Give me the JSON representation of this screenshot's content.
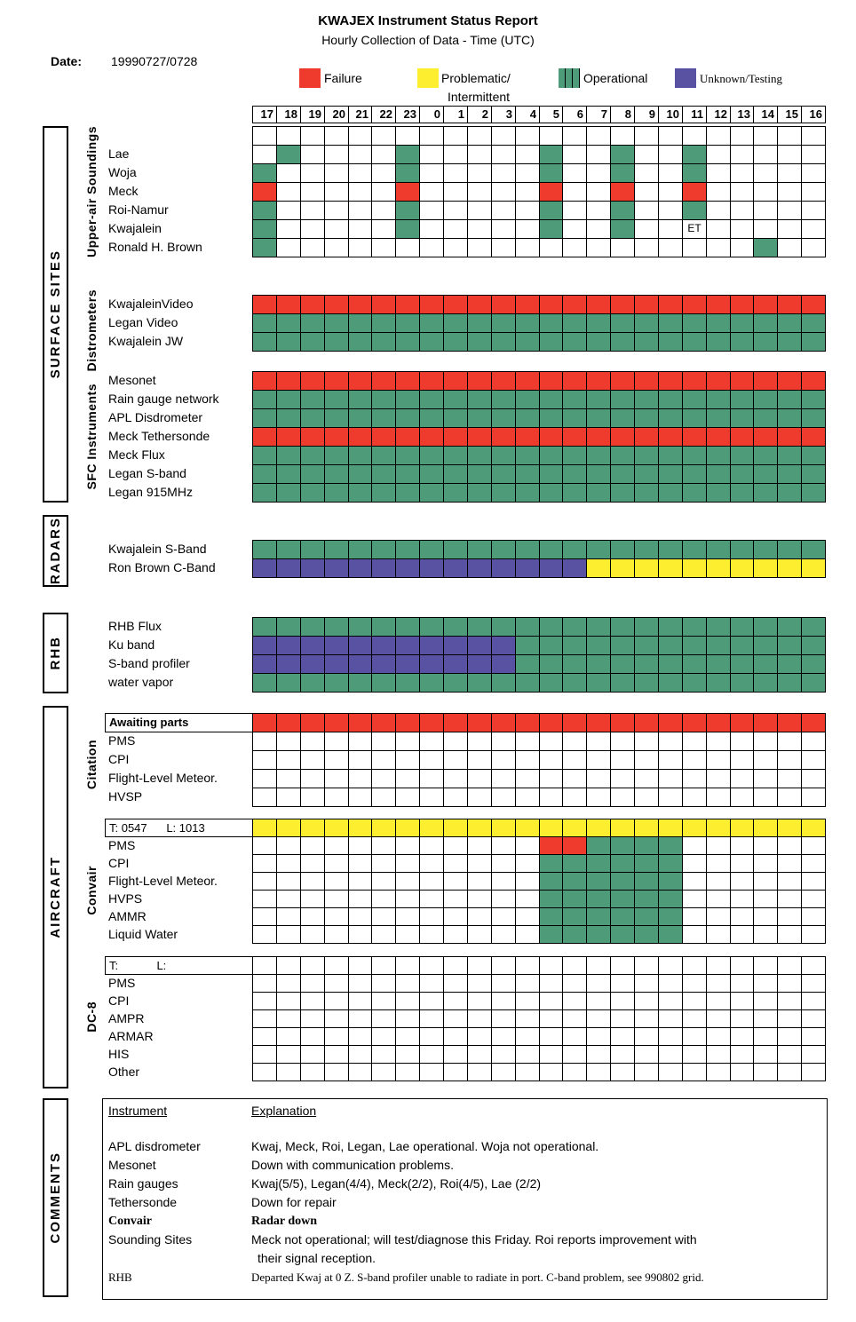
{
  "title": "KWAJEX Instrument Status Report",
  "subtitle": "Hourly Collection of Data - Time (UTC)",
  "date": {
    "label": "Date:",
    "value": "19990727/0728"
  },
  "legend": [
    {
      "label": "Failure",
      "color_key": "failure"
    },
    {
      "label": "Problematic/",
      "label2": "Intermittent",
      "color_key": "problematic"
    },
    {
      "label": "Operational",
      "color_key": "operational"
    },
    {
      "label": "Unknown/Testing",
      "color_key": "unknown"
    }
  ],
  "colors": {
    "failure": "#ee3b2e",
    "problematic": "#fdee30",
    "operational": "#4e9b79",
    "unknown": "#5951a2",
    "grid_line": "#000000"
  },
  "sidebar_labels": [
    "SURFACE SITES",
    "RADARS",
    "RHB",
    "AIRCRAFT",
    "COMMENTS"
  ],
  "group_labels": [
    "Upper-air Soundings",
    "Distrometers",
    "SFC Instruments",
    "Citation",
    "Convair",
    "DC-8"
  ],
  "chart_data": {
    "type": "heatmap",
    "title": "KWAJEX Instrument Status Report",
    "x_axis": "Hour (UTC)",
    "hours": [
      "17",
      "18",
      "19",
      "20",
      "21",
      "22",
      "23",
      "0",
      "1",
      "2",
      "3",
      "4",
      "5",
      "6",
      "7",
      "8",
      "9",
      "10",
      "11",
      "12",
      "13",
      "14",
      "15",
      "16"
    ],
    "status_codes": {
      "O": "Operational",
      "F": "Failure",
      "P": "Problematic/Intermittent",
      "U": "Unknown/Testing",
      "-": "blank"
    },
    "sections": [
      {
        "id": "upper_air",
        "sidebar": "SURFACE SITES",
        "group": "Upper-air Soundings",
        "rows": [
          {
            "label": "",
            "cells": "------------------------"
          },
          {
            "label": "Lae",
            "cells": "-O----O-----O--O--O-----"
          },
          {
            "label": "Woja",
            "cells": "O-----O-----O--O--O-----"
          },
          {
            "label": "Meck",
            "cells": "F-----F-----F--F--F-----"
          },
          {
            "label": "Roi-Namur",
            "cells": "O-----O-----O--O--O-----"
          },
          {
            "label": "Kwajalein",
            "cells": "O-----O-----O--O--------",
            "note": {
              "col": 18,
              "text": "ET"
            }
          },
          {
            "label": "Ronald H. Brown",
            "cells": "O--------------------O--"
          }
        ]
      },
      {
        "id": "distrometers",
        "group": "Distrometers",
        "rows": [
          {
            "label": "KwajaleinVideo",
            "cells": "FFFFFFFFFFFFFFFFFFFFFFFF"
          },
          {
            "label": "Legan Video",
            "cells": "OOOOOOOOOOOOOOOOOOOOOOOO"
          },
          {
            "label": "Kwajalein JW",
            "cells": "OOOOOOOOOOOOOOOOOOOOOOOO"
          }
        ]
      },
      {
        "id": "sfc",
        "group": "SFC Instruments",
        "rows": [
          {
            "label": "Mesonet",
            "cells": "FFFFFFFFFFFFFFFFFFFFFFFF"
          },
          {
            "label": "Rain gauge network",
            "cells": "OOOOOOOOOOOOOOOOOOOOOOOO"
          },
          {
            "label": "APL Disdrometer",
            "cells": "OOOOOOOOOOOOOOOOOOOOOOOO"
          },
          {
            "label": "Meck Tethersonde",
            "cells": "FFFFFFFFFFFFFFFFFFFFFFFF"
          },
          {
            "label": "Meck Flux",
            "cells": "OOOOOOOOOOOOOOOOOOOOOOOO"
          },
          {
            "label": "Legan S-band",
            "cells": "OOOOOOOOOOOOOOOOOOOOOOOO"
          },
          {
            "label": "Legan 915MHz",
            "cells": "OOOOOOOOOOOOOOOOOOOOOOOO"
          }
        ]
      },
      {
        "id": "radars",
        "sidebar": "RADARS",
        "rows": [
          {
            "label": "Kwajalein S-Band",
            "cells": "OOOOOOOOOOOOOOOOOOOOOOOO"
          },
          {
            "label": "Ron Brown C-Band",
            "cells": "UUUUUUUUUUUUUUPPPPPPPPPP"
          }
        ]
      },
      {
        "id": "rhb",
        "sidebar": "RHB",
        "rows": [
          {
            "label": "RHB Flux",
            "cells": "OOOOOOOOOOOOOOOOOOOOOOOO"
          },
          {
            "label": "Ku band",
            "cells": "UUUUUUUUUUUOOOOOOOOOOOOO"
          },
          {
            "label": "S-band profiler",
            "cells": "UUUUUUUUUUUOOOOOOOOOOOOO"
          },
          {
            "label": "water vapor",
            "cells": "OOOOOOOOOOOOOOOOOOOOOOOO"
          }
        ]
      },
      {
        "id": "citation",
        "sidebar": "AIRCRAFT",
        "group": "Citation",
        "rows": [
          {
            "label": "Awaiting parts",
            "label_box": true,
            "bold": true,
            "cells": "FFFFFFFFFFFFFFFFFFFFFFFF"
          },
          {
            "label": "PMS",
            "cells": "------------------------"
          },
          {
            "label": "CPI",
            "cells": "------------------------"
          },
          {
            "label": "Flight-Level Meteor.",
            "cells": "------------------------"
          },
          {
            "label": "HVSP",
            "cells": "------------------------"
          }
        ]
      },
      {
        "id": "convair",
        "group": "Convair",
        "rows": [
          {
            "label": "T: 0547      L: 1013",
            "label_box": true,
            "cells": "PPPPPPPPPPPPPPPPPPPPPPPP"
          },
          {
            "label": "PMS",
            "cells": "------------FFOOOO------"
          },
          {
            "label": "CPI",
            "cells": "------------OOOOOO------"
          },
          {
            "label": "Flight-Level Meteor.",
            "cells": "------------OOOOOO------"
          },
          {
            "label": "HVPS",
            "cells": "------------OOOOOO------"
          },
          {
            "label": "AMMR",
            "cells": "------------OOOOOO------"
          },
          {
            "label": "Liquid Water",
            "cells": "------------OOOOOO------"
          }
        ]
      },
      {
        "id": "dc8",
        "group": "DC-8",
        "rows": [
          {
            "label": "T:            L:",
            "label_box": true,
            "cells": "------------------------"
          },
          {
            "label": "PMS",
            "cells": "------------------------"
          },
          {
            "label": "CPI",
            "cells": "------------------------"
          },
          {
            "label": "AMPR",
            "cells": "------------------------"
          },
          {
            "label": "ARMAR",
            "cells": "------------------------"
          },
          {
            "label": "HIS",
            "cells": "------------------------"
          },
          {
            "label": "Other",
            "cells": "------------------------"
          }
        ]
      }
    ]
  },
  "comments": {
    "header": {
      "instrument": "Instrument",
      "explanation": "Explanation"
    },
    "rows": [
      {
        "instrument": "APL disdrometer",
        "explanation": "Kwaj, Meck, Roi, Legan, Lae operational. Woja not operational."
      },
      {
        "instrument": "Mesonet",
        "explanation": "Down with communication problems."
      },
      {
        "instrument": "Rain gauges",
        "explanation": "Kwaj(5/5), Legan(4/4), Meck(2/2), Roi(4/5), Lae (2/2)"
      },
      {
        "instrument": "Tethersonde",
        "explanation": "Down for repair"
      },
      {
        "instrument": "Convair",
        "explanation": "Radar down",
        "style": "bold-serif"
      },
      {
        "instrument": "Sounding Sites",
        "explanation": "Meck not operational; will test/diagnose this Friday. Roi reports improvement with",
        "explanation2": "their signal reception."
      },
      {
        "instrument": "RHB",
        "explanation": "Departed Kwaj at 0 Z. S-band profiler unable to radiate in port. C-band problem, see 990802 grid.",
        "style": "serif-small"
      }
    ]
  }
}
